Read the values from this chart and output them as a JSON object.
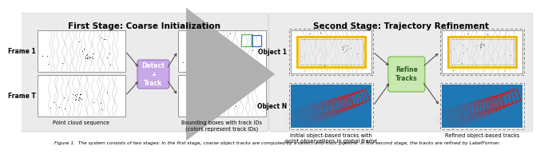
{
  "stage1_title": "First Stage: Coarse Initialization",
  "stage2_title": "Second Stage: Trajectory Refinement",
  "detect_track_label": "Detect\n+\nTrack",
  "refine_tracks_label": "Refine\nTracks",
  "frame1_label": "Frame 1",
  "frameT_label": "Frame T",
  "object1_label": "Object 1",
  "objectN_label": "Object N",
  "label_point_cloud": "Point cloud sequence",
  "label_bounding_boxes": "Bounding boxes with track IDs\n(colors represent track IDs)",
  "label_initial_tracks": "Initial object-based tracks with\npoint observations in global frame",
  "label_refined_tracks": "Refined object-based tracks",
  "caption": "Figure 1.  The system consists of two stages: ...",
  "stage1_bg": "#ebebeb",
  "stage2_bg": "#ebebeb",
  "panel_bg": "#ffffff",
  "detect_fill": "#c8a8e8",
  "detect_edge": "#a070c0",
  "refine_fill": "#c8e8b0",
  "refine_edge": "#70b840",
  "arrow_color": "#444444",
  "big_arrow_color": "#aaaaaa",
  "track_yellow": "#f0b800",
  "track_orange": "#e08000",
  "track_pink": "#e080a0",
  "track_purple": "#a050c0",
  "track_green": "#50c050",
  "track_blue": "#4060e0",
  "track_red": "#cc2020",
  "dashed_color": "#888888",
  "font_size_title": 7.5,
  "font_size_frame": 5.5,
  "font_size_label": 4.8,
  "font_size_dt": 5.5,
  "font_size_caption": 4.2
}
